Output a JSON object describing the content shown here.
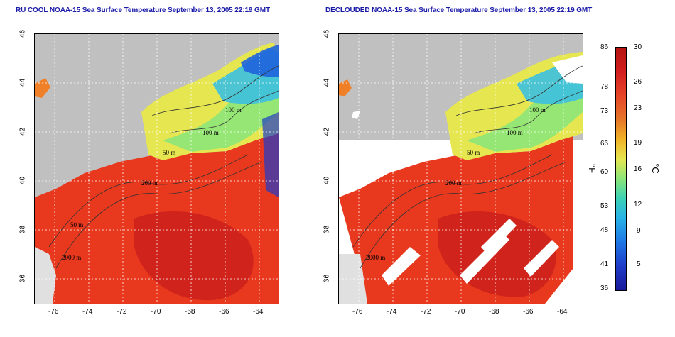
{
  "titles": {
    "left": "RU COOL NOAA-15 Sea Surface Temperature September 13, 2005 22:19 GMT",
    "right": "DECLOUDED NOAA-15 Sea Surface Temperature September 13, 2005 22:19 GMT"
  },
  "axes": {
    "x_ticks": [
      "-76",
      "-74",
      "-72",
      "-70",
      "-68",
      "-66",
      "-64"
    ],
    "y_ticks": [
      "36",
      "38",
      "40",
      "42",
      "44",
      "46"
    ]
  },
  "contour_labels": [
    "100 m",
    "100 m",
    "50 m",
    "50 m",
    "200 m",
    "50 m",
    "2000 m"
  ],
  "colorbar": {
    "fahrenheit": [
      "86",
      "78",
      "73",
      "66",
      "60",
      "53",
      "48",
      "41",
      "36"
    ],
    "celsius": [
      "30",
      "26",
      "23",
      "19",
      "16",
      "12",
      "9",
      "5"
    ],
    "unit_f": "°F",
    "unit_c": "°C"
  },
  "colors": {
    "land": "#c0c0c0",
    "warm": "#e8321e",
    "title": "#1a1aa8"
  }
}
